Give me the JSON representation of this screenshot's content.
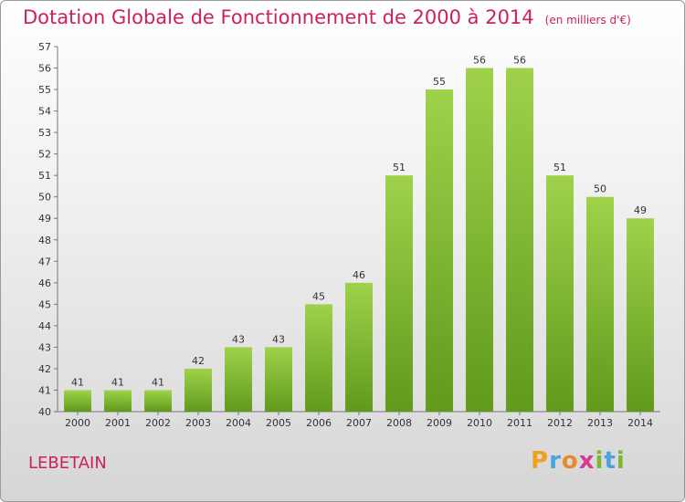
{
  "header": {
    "title": "Dotation Globale de Fonctionnement de 2000 à 2014",
    "subtitle": "(en milliers d'€)"
  },
  "footer": {
    "commune": "LEBETAIN",
    "brand_letters": [
      "P",
      "r",
      "o",
      "x",
      "i",
      "t",
      "i"
    ],
    "brand_colors": [
      "#f0a020",
      "#4aa3df",
      "#e8892b",
      "#d63a8a",
      "#7ab834",
      "#4aa3df",
      "#7ab834"
    ]
  },
  "colors": {
    "bar_light": "#9fd24a",
    "bar_dark": "#5f9a1c",
    "title": "#cc2255"
  },
  "chart_data": {
    "type": "bar",
    "title": "Dotation Globale de Fonctionnement de 2000 à 2014",
    "subtitle": "(en milliers d'€)",
    "categories": [
      "2000",
      "2001",
      "2002",
      "2003",
      "2004",
      "2005",
      "2006",
      "2007",
      "2008",
      "2009",
      "2010",
      "2011",
      "2012",
      "2013",
      "2014"
    ],
    "values": [
      41,
      41,
      41,
      42,
      43,
      43,
      45,
      46,
      51,
      55,
      56,
      56,
      51,
      50,
      49
    ],
    "ylim": [
      40,
      57
    ],
    "yticks": [
      40,
      41,
      42,
      43,
      44,
      45,
      46,
      47,
      48,
      49,
      50,
      51,
      52,
      53,
      54,
      55,
      56,
      57
    ],
    "grid": false,
    "legend": "none"
  }
}
